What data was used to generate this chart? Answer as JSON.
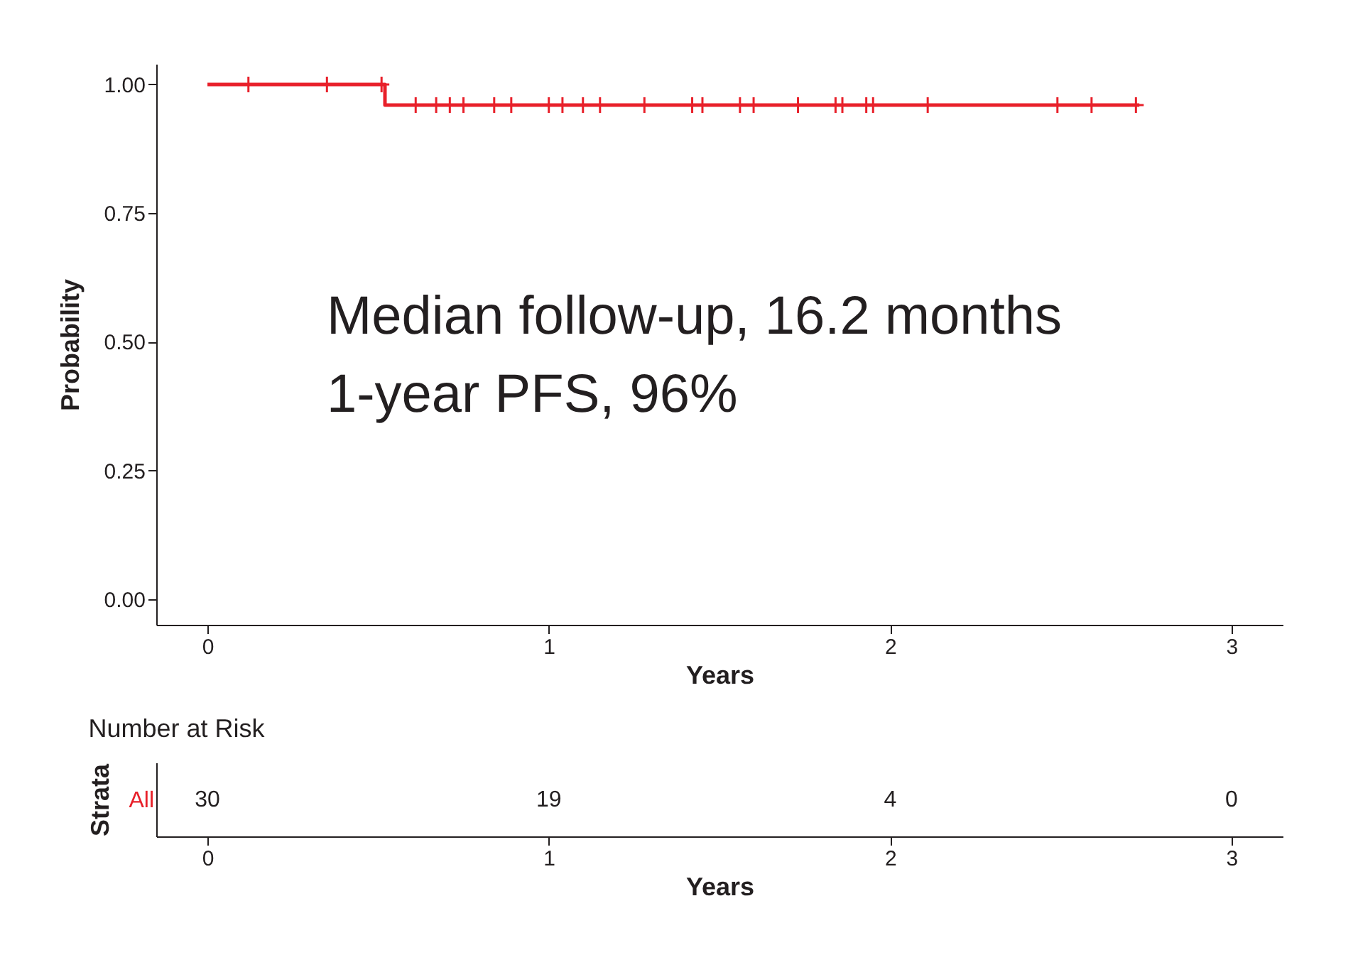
{
  "chart_data": [
    {
      "type": "step",
      "ylabel": "Probability",
      "xlabel": "Years",
      "xlim": [
        -0.15,
        3.15
      ],
      "xticks": [
        0,
        1,
        2,
        3
      ],
      "ylim": [
        -0.05,
        1.04
      ],
      "yticks": [
        {
          "value": 0,
          "label": "0.00"
        },
        {
          "value": 0.25,
          "label": "0.25"
        },
        {
          "value": 0.5,
          "label": "0.50"
        },
        {
          "value": 0.75,
          "label": "0.75"
        },
        {
          "value": 1,
          "label": "1.00"
        }
      ],
      "grid": false,
      "annotations": [
        "Median follow-up, 16.2 months",
        "1-year PFS, 96%"
      ],
      "series": [
        {
          "type": "step",
          "color": "#e8202a",
          "x": [
            0,
            0.52,
            2.73
          ],
          "values": [
            1,
            0.96,
            0.96
          ]
        },
        {
          "type": "scatter",
          "marker": "cross",
          "color": "#e8202a",
          "x": [
            0.12,
            0.35,
            0.51,
            0.61,
            0.67,
            0.71,
            0.75,
            0.84,
            0.89,
            1.0,
            1.04,
            1.1,
            1.15,
            1.28,
            1.42,
            1.45,
            1.56,
            1.6,
            1.73,
            1.84,
            1.86,
            1.93,
            1.95,
            2.11,
            2.49,
            2.59,
            2.72
          ],
          "values": [
            1,
            1,
            1,
            0.96,
            0.96,
            0.96,
            0.96,
            0.96,
            0.96,
            0.96,
            0.96,
            0.96,
            0.96,
            0.96,
            0.96,
            0.96,
            0.96,
            0.96,
            0.96,
            0.96,
            0.96,
            0.96,
            0.96,
            0.96,
            0.96,
            0.96,
            0.96
          ]
        }
      ]
    },
    {
      "type": "heatmap",
      "title": "Number at Risk",
      "ylabel": "Strata",
      "xlabel": "Years",
      "categories": [
        "0",
        "1",
        "2",
        "3"
      ],
      "y_categories": [
        "All"
      ],
      "cells": [
        [
          30,
          19,
          4,
          0
        ]
      ],
      "data_labels": true
    }
  ]
}
